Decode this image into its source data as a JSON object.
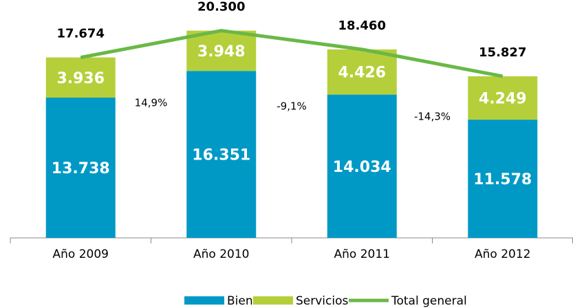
{
  "chart_data": {
    "type": "bar",
    "stacked": true,
    "categories": [
      "Año 2009",
      "Año 2010",
      "Año 2011",
      "Año 2012"
    ],
    "ylim": [
      0,
      23300
    ],
    "series": [
      {
        "name": "Bienes",
        "color": "#0099c6",
        "values": [
          13738,
          16351,
          14034,
          11578
        ],
        "value_labels": [
          "13.738",
          "16.351",
          "14.034",
          "11.578"
        ]
      },
      {
        "name": "Servicios",
        "color": "#b5cf3a",
        "values": [
          3936,
          3948,
          4426,
          4249
        ],
        "value_labels": [
          "3.936",
          "3.948",
          "4.426",
          "4.249"
        ]
      },
      {
        "name": "Total general",
        "type": "line",
        "color": "#6ab846",
        "values": [
          17674,
          20300,
          18460,
          15827
        ],
        "value_labels": [
          "17.674",
          "20.300",
          "18.460",
          "15.827"
        ]
      }
    ],
    "annotations": [
      "14,9%",
      "-9,1%",
      "-14,3%"
    ],
    "legend": "bottom"
  }
}
